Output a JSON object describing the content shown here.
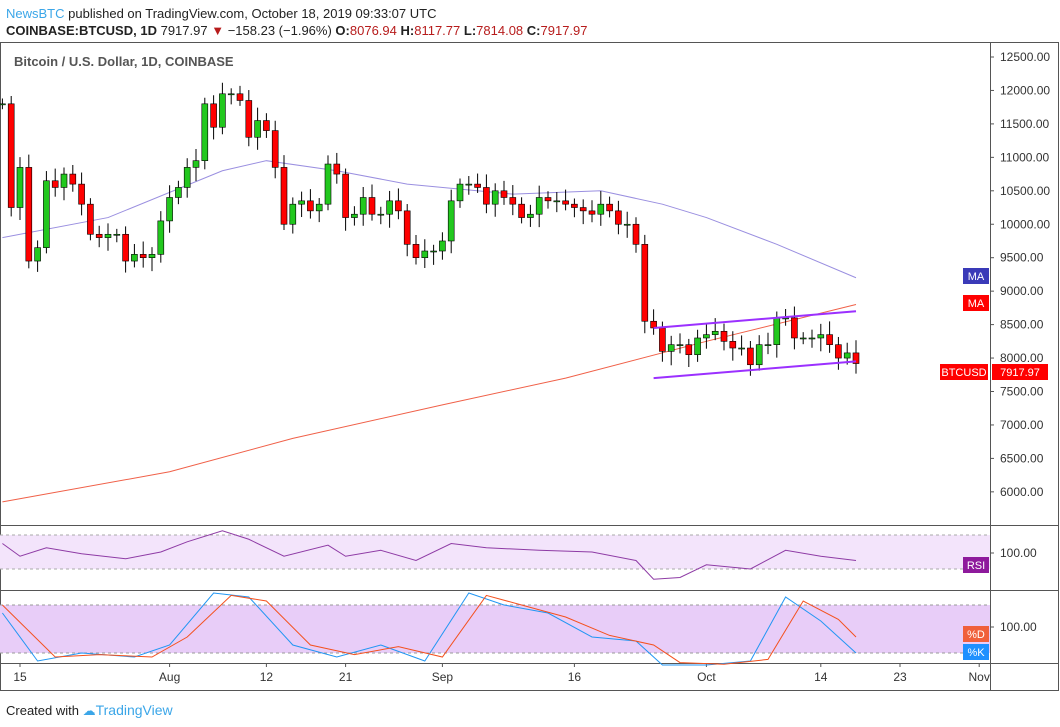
{
  "header": {
    "publisher": "NewsBTC",
    "published_text": "published on TradingView.com, October 18, 2019 09:33:07 UTC",
    "symbol": "COINBASE:BTCUSD, 1D",
    "last": "7917.97",
    "change": "−158.23 (−1.96%)",
    "o_label": "O:",
    "o": "8076.94",
    "h_label": "H:",
    "h": "8117.77",
    "l_label": "L:",
    "l": "7814.08",
    "c_label": "C:",
    "c": "7917.97"
  },
  "footer": {
    "created": "Created with",
    "brand": "TradingView"
  },
  "chart_data": {
    "type": "candlestick",
    "title": "Bitcoin / U.S. Dollar, 1D, COINBASE",
    "start_date": "2019-07-13",
    "first_open": 11800,
    "closes": [
      11800,
      10250,
      10850,
      9450,
      9650,
      10650,
      10550,
      10750,
      10600,
      10300,
      9850,
      9800,
      9850,
      9850,
      9450,
      9550,
      9500,
      9550,
      10050,
      10400,
      10550,
      10850,
      10950,
      11800,
      11450,
      11950,
      11950,
      11850,
      11300,
      11550,
      11400,
      10850,
      10000,
      10300,
      10350,
      10200,
      10300,
      10900,
      10750,
      10100,
      10150,
      10400,
      10150,
      10150,
      10350,
      10200,
      9700,
      9500,
      9600,
      9600,
      9750,
      10350,
      10600,
      10600,
      10550,
      10300,
      10500,
      10400,
      10300,
      10100,
      10150,
      10400,
      10350,
      10350,
      10300,
      10250,
      10200,
      10150,
      10300,
      10200,
      10000,
      10000,
      9700,
      8550,
      8450,
      8100,
      8200,
      8200,
      8050,
      8300,
      8350,
      8400,
      8250,
      8150,
      8150,
      7900,
      8200,
      8200,
      8600,
      8600,
      8300,
      8300,
      8300,
      8350,
      8200,
      8000,
      8076.94,
      7917.97
    ],
    "ylim": [
      5500,
      12800
    ],
    "y_ticks": [
      "12500.00",
      "12000.00",
      "11500.00",
      "11000.00",
      "10500.00",
      "10000.00",
      "9500.00",
      "9000.00",
      "8500.00",
      "8000.00",
      "7500.00",
      "7000.00",
      "6500.00",
      "6000.00"
    ],
    "x_ticks": [
      {
        "day": 2,
        "label": "15"
      },
      {
        "day": 19,
        "label": "Aug"
      },
      {
        "day": 30,
        "label": "12"
      },
      {
        "day": 39,
        "label": "21"
      },
      {
        "day": 50,
        "label": "Sep"
      },
      {
        "day": 65,
        "label": "16"
      },
      {
        "day": 80,
        "label": "Oct"
      },
      {
        "day": 93,
        "label": "14"
      },
      {
        "day": 102,
        "label": "23"
      },
      {
        "day": 111,
        "label": "Nov"
      }
    ],
    "ma_fast": {
      "label": "MA",
      "color": "#3f3fbf",
      "points": [
        [
          0,
          9800
        ],
        [
          12,
          10100
        ],
        [
          25,
          10800
        ],
        [
          30,
          10950
        ],
        [
          38,
          10800
        ],
        [
          46,
          10600
        ],
        [
          58,
          10450
        ],
        [
          68,
          10500
        ],
        [
          75,
          10300
        ],
        [
          80,
          10100
        ],
        [
          88,
          9700
        ],
        [
          97,
          9200
        ]
      ]
    },
    "ma_slow": {
      "label": "MA",
      "color": "#ff0000",
      "points": [
        [
          0,
          5850
        ],
        [
          19,
          6300
        ],
        [
          33,
          6800
        ],
        [
          50,
          7300
        ],
        [
          64,
          7700
        ],
        [
          80,
          8250
        ],
        [
          97,
          8800
        ]
      ]
    },
    "trendlines": [
      {
        "from": [
          74,
          8450
        ],
        "to": [
          97,
          8700
        ]
      },
      {
        "from": [
          74,
          7700
        ],
        "to": [
          97,
          7950
        ]
      }
    ],
    "last_label": {
      "symbol": "BTCUSD",
      "price": "7917.97"
    },
    "rsi": {
      "label": "RSI",
      "tick": "100.00",
      "values": [
        [
          0,
          60
        ],
        [
          2,
          45
        ],
        [
          5,
          55
        ],
        [
          9,
          48
        ],
        [
          14,
          42
        ],
        [
          18,
          50
        ],
        [
          21,
          62
        ],
        [
          25,
          75
        ],
        [
          28,
          65
        ],
        [
          32,
          45
        ],
        [
          37,
          58
        ],
        [
          39,
          45
        ],
        [
          43,
          52
        ],
        [
          47,
          40
        ],
        [
          51,
          60
        ],
        [
          55,
          55
        ],
        [
          61,
          52
        ],
        [
          67,
          50
        ],
        [
          72,
          40
        ],
        [
          74,
          18
        ],
        [
          77,
          20
        ],
        [
          80,
          35
        ],
        [
          85,
          30
        ],
        [
          89,
          52
        ],
        [
          93,
          45
        ],
        [
          97,
          40
        ]
      ]
    },
    "stoch": {
      "k_label": "%K",
      "d_label": "%D",
      "tick": "100.00",
      "k": [
        [
          0,
          70
        ],
        [
          4,
          10
        ],
        [
          9,
          20
        ],
        [
          15,
          15
        ],
        [
          19,
          30
        ],
        [
          24,
          95
        ],
        [
          28,
          90
        ],
        [
          33,
          30
        ],
        [
          38,
          15
        ],
        [
          43,
          30
        ],
        [
          48,
          10
        ],
        [
          53,
          95
        ],
        [
          57,
          80
        ],
        [
          62,
          70
        ],
        [
          67,
          40
        ],
        [
          72,
          35
        ],
        [
          75,
          5
        ],
        [
          80,
          5
        ],
        [
          85,
          10
        ],
        [
          89,
          90
        ],
        [
          93,
          60
        ],
        [
          97,
          20
        ]
      ],
      "d": [
        [
          0,
          80
        ],
        [
          6,
          15
        ],
        [
          11,
          18
        ],
        [
          17,
          15
        ],
        [
          21,
          40
        ],
        [
          26,
          92
        ],
        [
          30,
          85
        ],
        [
          35,
          30
        ],
        [
          40,
          18
        ],
        [
          45,
          28
        ],
        [
          50,
          15
        ],
        [
          55,
          92
        ],
        [
          59,
          80
        ],
        [
          64,
          65
        ],
        [
          69,
          42
        ],
        [
          74,
          30
        ],
        [
          77,
          8
        ],
        [
          82,
          6
        ],
        [
          87,
          12
        ],
        [
          91,
          85
        ],
        [
          95,
          62
        ],
        [
          97,
          40
        ]
      ]
    }
  }
}
